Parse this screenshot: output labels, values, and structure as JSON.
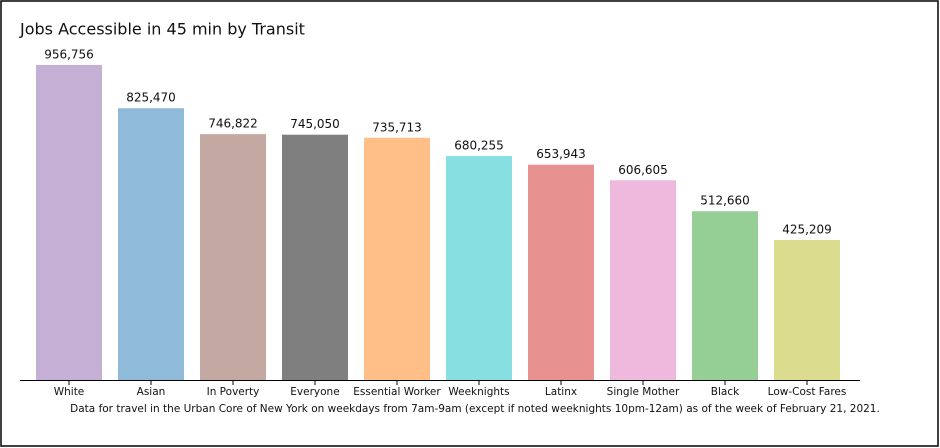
{
  "chart_data": {
    "type": "bar",
    "title": "Jobs Accessible in 45 min by Transit",
    "categories": [
      "White",
      "Asian",
      "In Poverty",
      "Everyone",
      "Essential Worker",
      "Weeknights",
      "Latinx",
      "Single Mother",
      "Black",
      "Low-Cost Fares"
    ],
    "values": [
      956756,
      825470,
      746822,
      745050,
      735713,
      680255,
      653943,
      606605,
      512660,
      425209
    ],
    "value_labels": [
      "956,756",
      "825,470",
      "746,822",
      "745,050",
      "735,713",
      "680,255",
      "653,943",
      "606,605",
      "512,660",
      "425,209"
    ],
    "colors": [
      "#c5b0d5",
      "#8fbbd9",
      "#c4a9a2",
      "#7f7f7f",
      "#ffbf86",
      "#87dfe2",
      "#e89191",
      "#efb9dd",
      "#95cf95",
      "#dcdc8e"
    ],
    "footnote": "Data for travel in the Urban Core of New York on weekdays from 7am-9am (except if noted weeknights 10pm-12am) as of the week of February 21, 2021."
  }
}
